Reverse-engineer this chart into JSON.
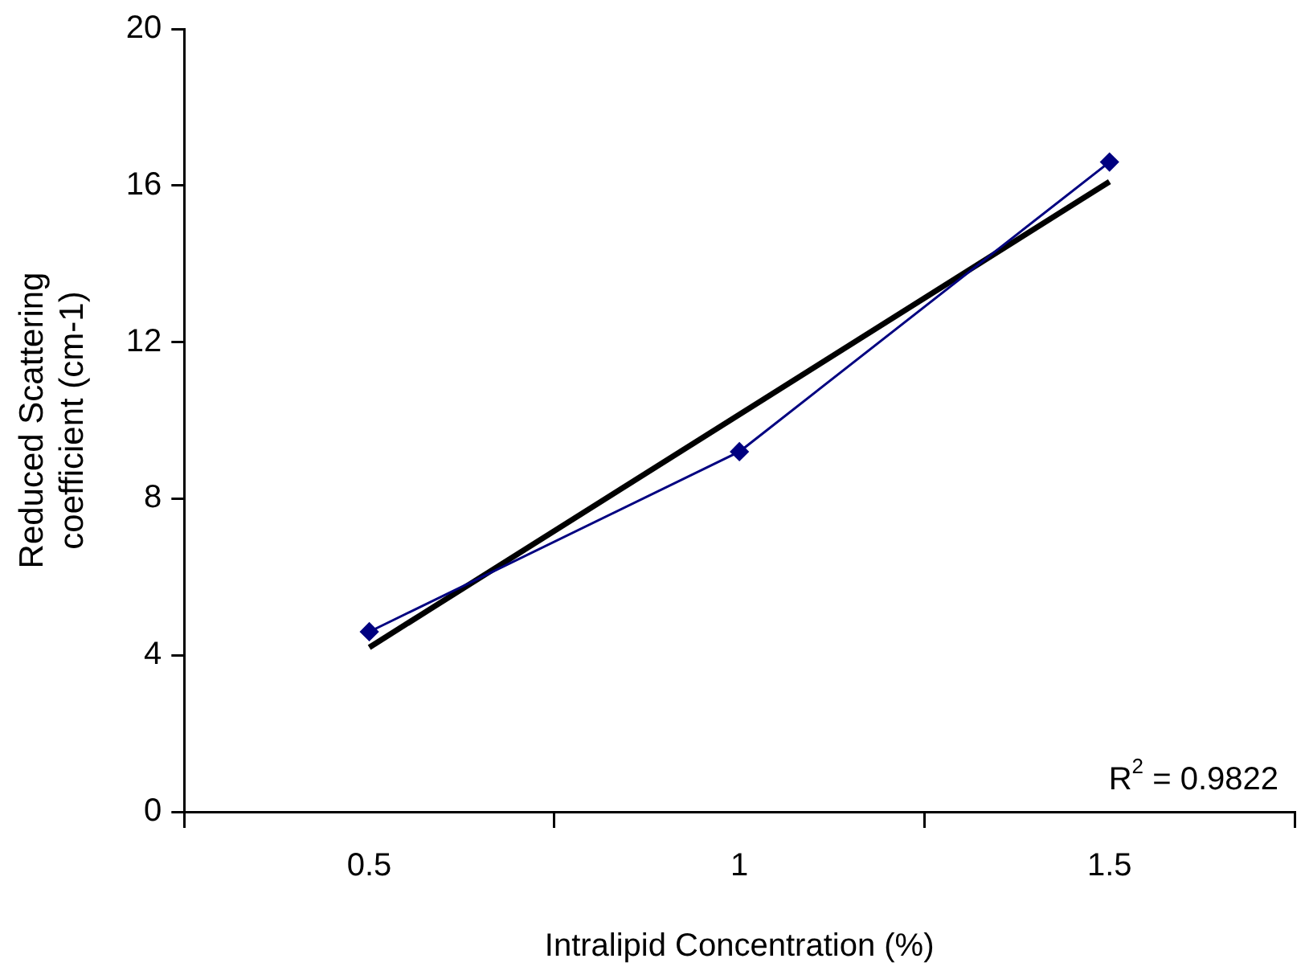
{
  "chart_data": {
    "type": "line",
    "xlabel": "Intralipid Concentration (%)",
    "ylabel": "Reduced Scattering\ncoefficient (cm-1)",
    "categories": [
      "0.5",
      "1",
      "1.5"
    ],
    "series": [
      {
        "color": "#000080",
        "values": [
          4.6,
          9.2,
          16.6
        ],
        "marker": "diamond"
      },
      {
        "color": "#000000",
        "x": [
          "0.5",
          "1.5"
        ],
        "values": [
          4.2,
          16.1
        ],
        "marker": "none"
      }
    ],
    "ylim": [
      0,
      20
    ],
    "yticks": [
      0,
      4,
      8,
      12,
      16,
      20
    ],
    "grid": false,
    "legend": false,
    "annotations": [
      "R$^{2}$ = 0.9822"
    ]
  }
}
